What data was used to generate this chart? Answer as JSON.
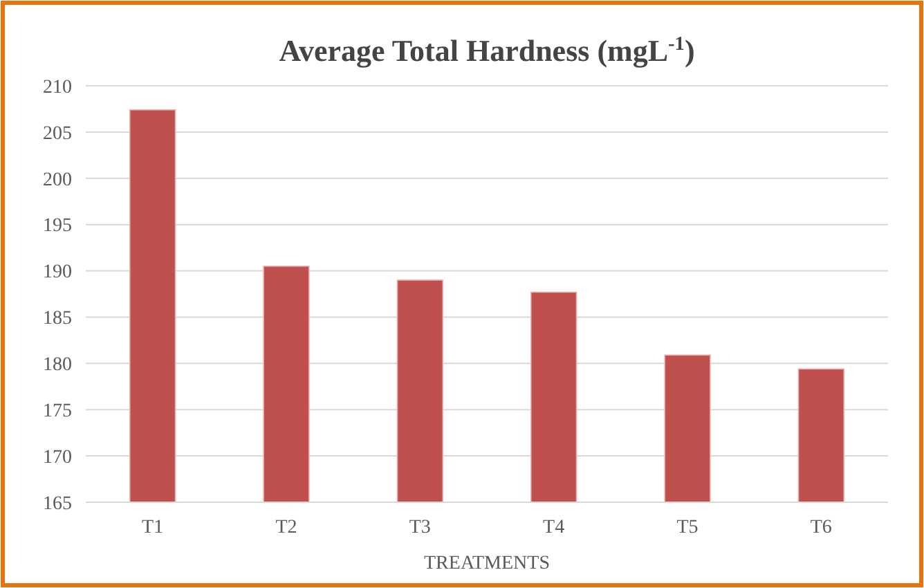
{
  "chart_data": {
    "type": "bar",
    "title": "Average Total Hardness (mgL$^{-1}$)",
    "xlabel": "TREATMENTS",
    "categories": [
      "T1",
      "T2",
      "T3",
      "T4",
      "T5",
      "T6"
    ],
    "values": [
      207.4,
      190.5,
      189.0,
      187.7,
      180.9,
      179.4
    ],
    "color": "#c0504d",
    "ylim": [
      165,
      210
    ],
    "yticks": [
      165,
      170,
      175,
      180,
      185,
      190,
      195,
      200,
      205,
      210
    ],
    "grid": true
  }
}
